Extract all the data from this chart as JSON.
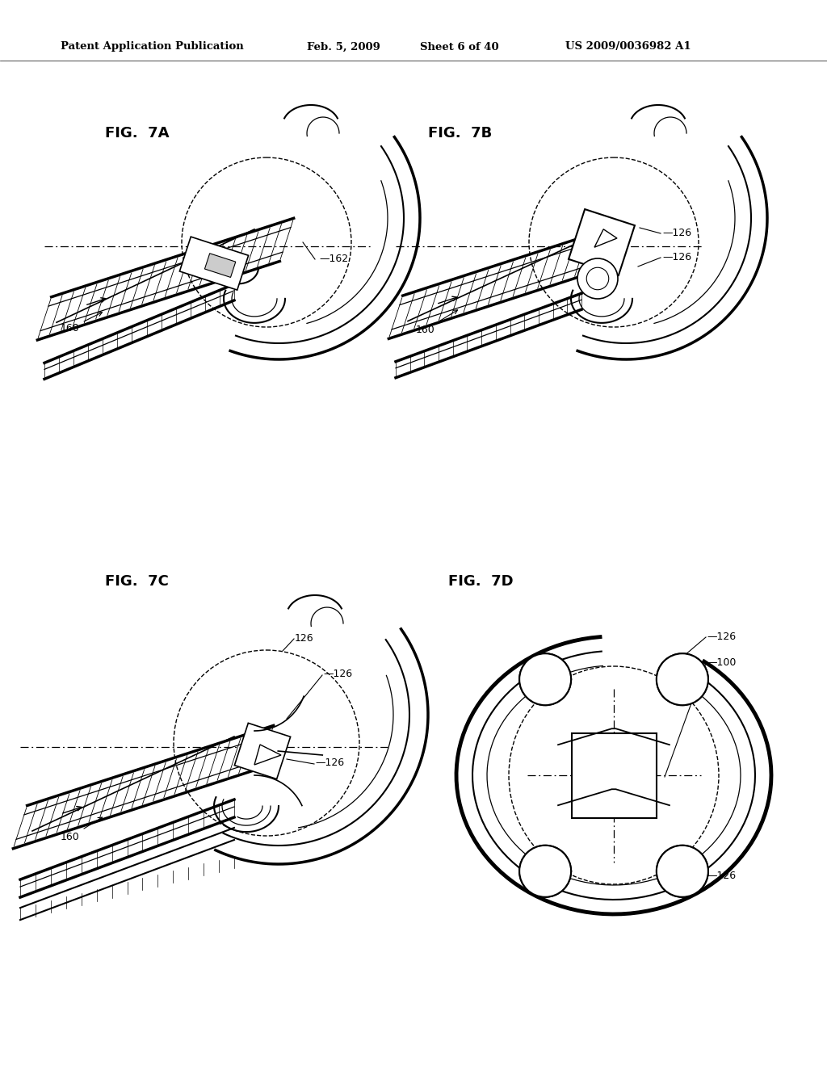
{
  "background_color": "#ffffff",
  "header_text": "Patent Application Publication",
  "header_date": "Feb. 5, 2009",
  "header_sheet": "Sheet 6 of 40",
  "header_patent": "US 2009/0036982 A1",
  "line_color": "#000000",
  "font_size_header": 9.5,
  "font_size_fig": 13,
  "font_size_ref": 9
}
